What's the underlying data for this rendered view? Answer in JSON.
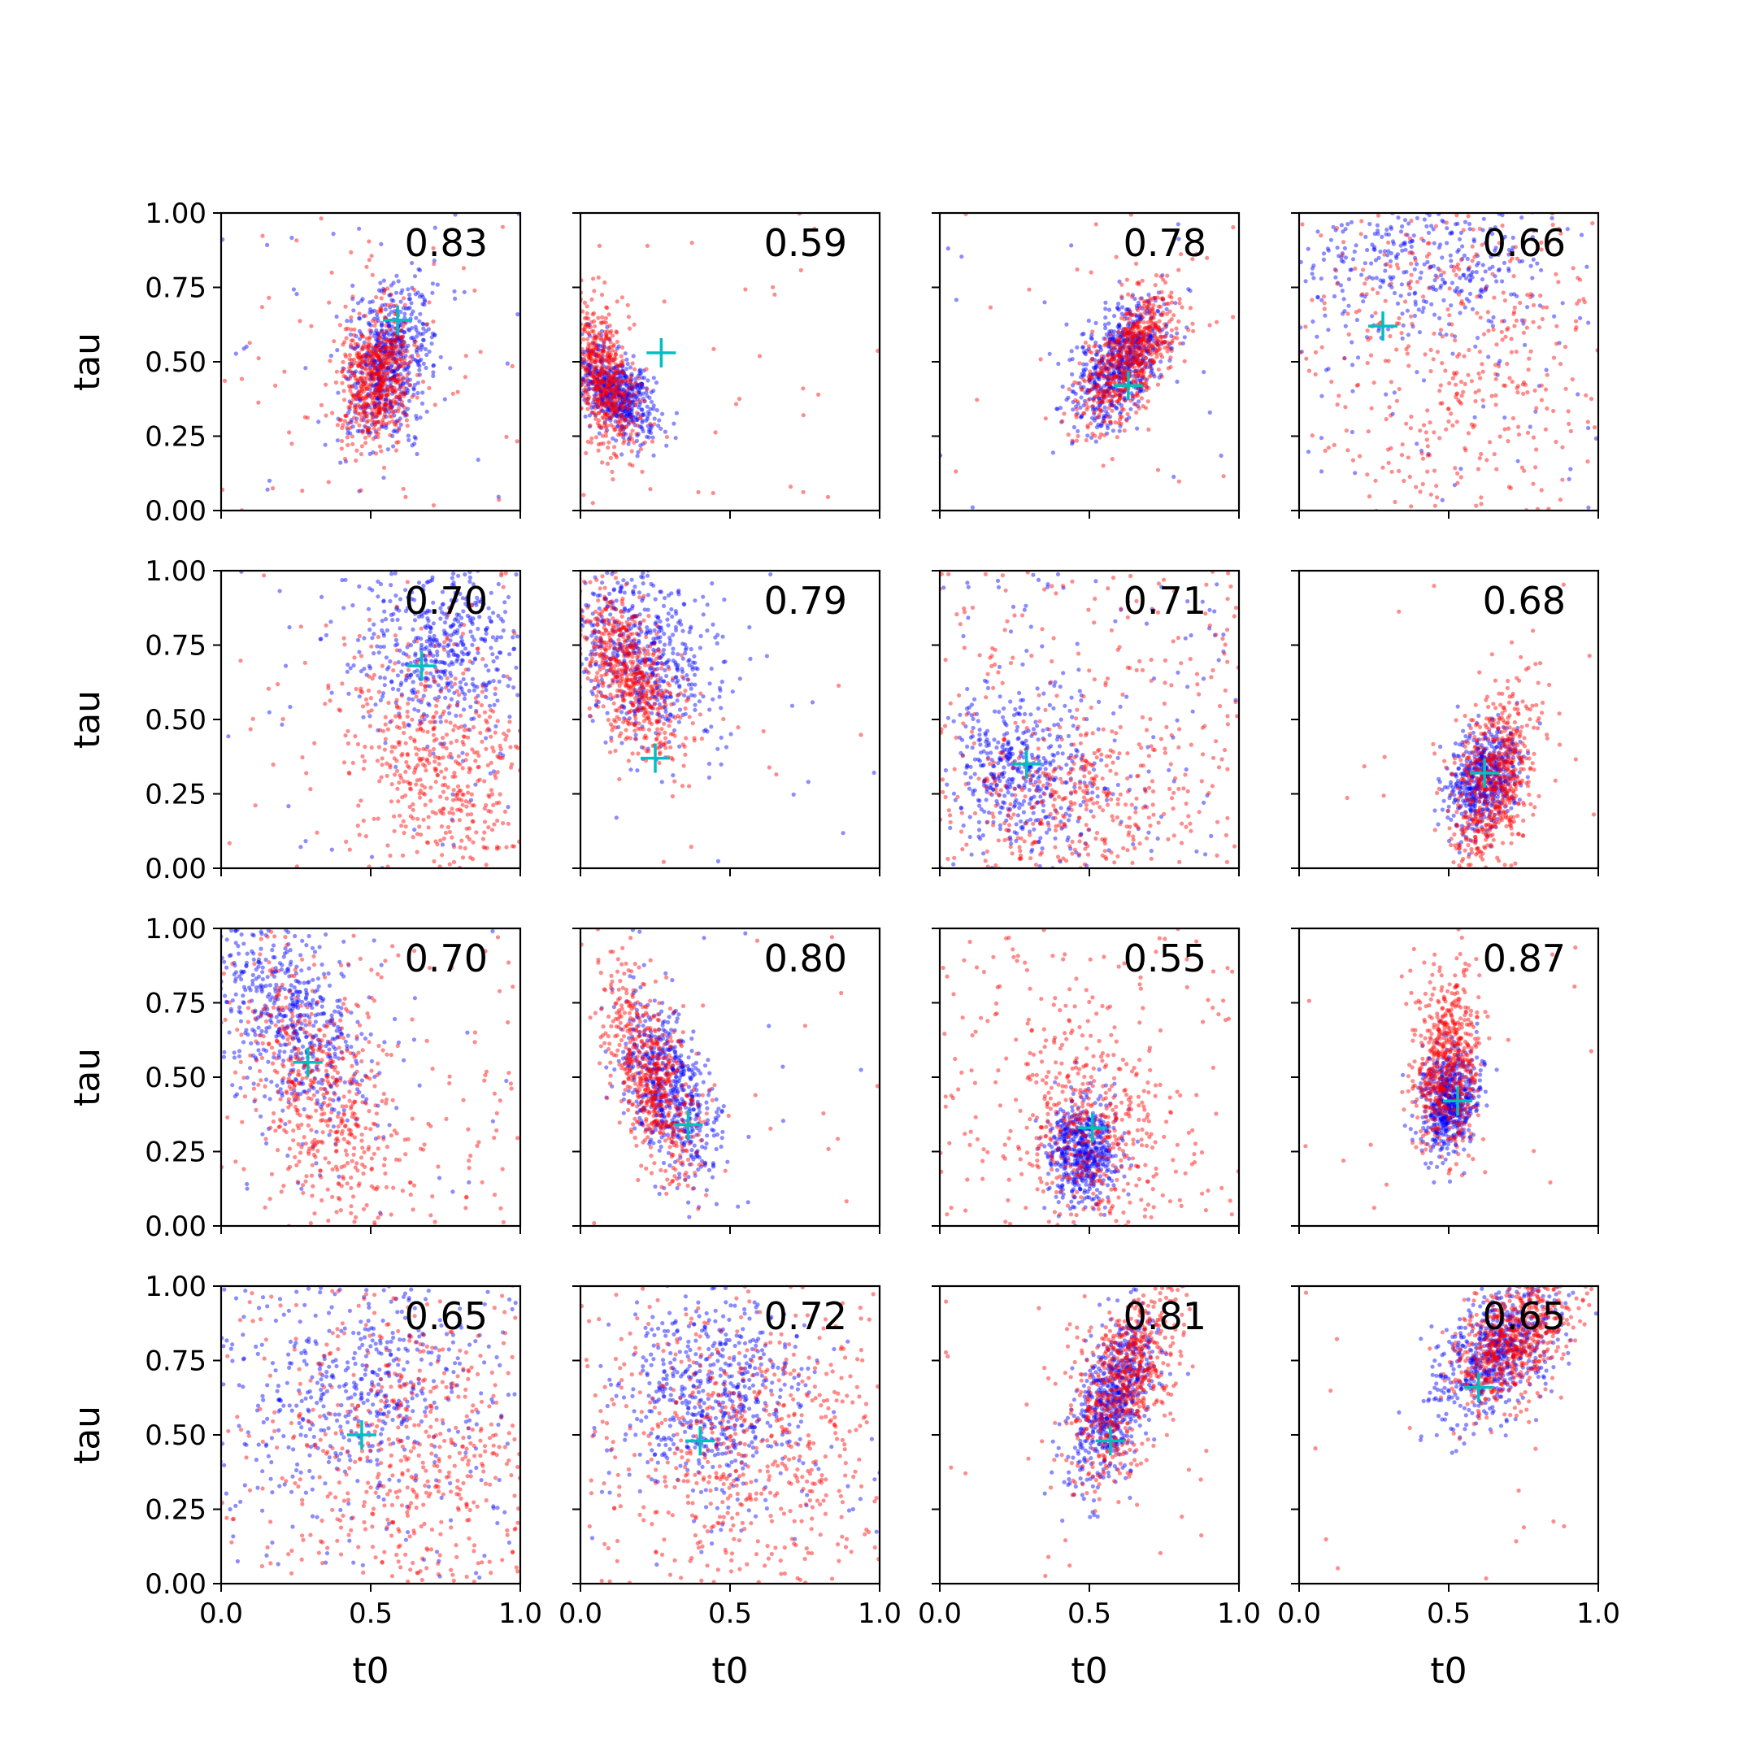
{
  "figure": {
    "xlabel": "t0",
    "ylabel": "tau"
  },
  "colors": {
    "series_a": "#0000ff",
    "series_b": "#ff0000",
    "marker": "#00bfbf",
    "axes": "#000000"
  },
  "axes_config": {
    "xlim": [
      0,
      1
    ],
    "ylim": [
      0,
      1
    ],
    "xticks": [
      "0.0",
      "0.5",
      "1.0"
    ],
    "yticks": [
      "0.00",
      "0.25",
      "0.50",
      "0.75",
      "1.00"
    ],
    "grid": false,
    "sharex": true,
    "sharey": true
  },
  "chart_data": [
    {
      "type": "scatter",
      "row": 0,
      "col": 0,
      "score": "0.83",
      "marker": [
        0.59,
        0.64
      ],
      "series": [
        {
          "color": "blue",
          "cx": 0.56,
          "cy": 0.5,
          "sx": 0.07,
          "sy": 0.13,
          "corr": 0.3,
          "n": 650,
          "uniform": 0.05
        },
        {
          "color": "red",
          "cx": 0.52,
          "cy": 0.45,
          "sx": 0.06,
          "sy": 0.11,
          "corr": 0.2,
          "n": 650,
          "uniform": 0.08
        }
      ]
    },
    {
      "type": "scatter",
      "row": 0,
      "col": 1,
      "score": "0.59",
      "marker": [
        0.27,
        0.53
      ],
      "series": [
        {
          "color": "blue",
          "cx": 0.12,
          "cy": 0.4,
          "sx": 0.07,
          "sy": 0.08,
          "corr": -0.5,
          "n": 600,
          "uniform": 0.0
        },
        {
          "color": "red",
          "cx": 0.08,
          "cy": 0.45,
          "sx": 0.06,
          "sy": 0.13,
          "corr": -0.5,
          "n": 600,
          "uniform": 0.05
        }
      ]
    },
    {
      "type": "scatter",
      "row": 0,
      "col": 2,
      "score": "0.78",
      "marker": [
        0.63,
        0.42
      ],
      "series": [
        {
          "color": "blue",
          "cx": 0.6,
          "cy": 0.5,
          "sx": 0.08,
          "sy": 0.11,
          "corr": 0.5,
          "n": 650,
          "uniform": 0.02
        },
        {
          "color": "red",
          "cx": 0.64,
          "cy": 0.52,
          "sx": 0.08,
          "sy": 0.12,
          "corr": 0.6,
          "n": 650,
          "uniform": 0.03
        }
      ]
    },
    {
      "type": "scatter",
      "row": 0,
      "col": 3,
      "score": "0.66",
      "marker": [
        0.28,
        0.62
      ],
      "series": [
        {
          "color": "blue",
          "cx": 0.4,
          "cy": 0.85,
          "sx": 0.25,
          "sy": 0.14,
          "corr": 0.0,
          "n": 450,
          "uniform": 0.15
        },
        {
          "color": "red",
          "cx": 0.55,
          "cy": 0.55,
          "sx": 0.25,
          "sy": 0.28,
          "corr": 0.0,
          "n": 450,
          "uniform": 0.3
        }
      ]
    },
    {
      "type": "scatter",
      "row": 1,
      "col": 0,
      "score": "0.70",
      "marker": [
        0.67,
        0.68
      ],
      "series": [
        {
          "color": "blue",
          "cx": 0.72,
          "cy": 0.75,
          "sx": 0.15,
          "sy": 0.16,
          "corr": 0.0,
          "n": 550,
          "uniform": 0.05
        },
        {
          "color": "red",
          "cx": 0.72,
          "cy": 0.35,
          "sx": 0.14,
          "sy": 0.22,
          "corr": -0.2,
          "n": 550,
          "uniform": 0.1
        }
      ]
    },
    {
      "type": "scatter",
      "row": 1,
      "col": 1,
      "score": "0.79",
      "marker": [
        0.25,
        0.37
      ],
      "series": [
        {
          "color": "blue",
          "cx": 0.2,
          "cy": 0.72,
          "sx": 0.12,
          "sy": 0.15,
          "corr": -0.3,
          "n": 600,
          "uniform": 0.02
        },
        {
          "color": "red",
          "cx": 0.16,
          "cy": 0.65,
          "sx": 0.09,
          "sy": 0.14,
          "corr": -0.6,
          "n": 600,
          "uniform": 0.03
        }
      ]
    },
    {
      "type": "scatter",
      "row": 1,
      "col": 2,
      "score": "0.71",
      "marker": [
        0.29,
        0.35
      ],
      "series": [
        {
          "color": "blue",
          "cx": 0.27,
          "cy": 0.32,
          "sx": 0.11,
          "sy": 0.14,
          "corr": 0.0,
          "n": 550,
          "uniform": 0.25
        },
        {
          "color": "red",
          "cx": 0.45,
          "cy": 0.2,
          "sx": 0.18,
          "sy": 0.15,
          "corr": 0.0,
          "n": 550,
          "uniform": 0.45
        }
      ]
    },
    {
      "type": "scatter",
      "row": 1,
      "col": 3,
      "score": "0.68",
      "marker": [
        0.62,
        0.32
      ],
      "series": [
        {
          "color": "blue",
          "cx": 0.62,
          "cy": 0.3,
          "sx": 0.06,
          "sy": 0.09,
          "corr": 0.3,
          "n": 550,
          "uniform": 0.0
        },
        {
          "color": "red",
          "cx": 0.65,
          "cy": 0.28,
          "sx": 0.07,
          "sy": 0.16,
          "corr": 0.4,
          "n": 650,
          "uniform": 0.04
        }
      ]
    },
    {
      "type": "scatter",
      "row": 2,
      "col": 0,
      "score": "0.70",
      "marker": [
        0.29,
        0.55
      ],
      "series": [
        {
          "color": "blue",
          "cx": 0.22,
          "cy": 0.7,
          "sx": 0.14,
          "sy": 0.18,
          "corr": -0.4,
          "n": 600,
          "uniform": 0.05
        },
        {
          "color": "red",
          "cx": 0.35,
          "cy": 0.45,
          "sx": 0.13,
          "sy": 0.22,
          "corr": -0.5,
          "n": 600,
          "uniform": 0.2
        }
      ]
    },
    {
      "type": "scatter",
      "row": 2,
      "col": 1,
      "score": "0.80",
      "marker": [
        0.36,
        0.34
      ],
      "series": [
        {
          "color": "blue",
          "cx": 0.3,
          "cy": 0.45,
          "sx": 0.08,
          "sy": 0.15,
          "corr": -0.5,
          "n": 600,
          "uniform": 0.02
        },
        {
          "color": "red",
          "cx": 0.24,
          "cy": 0.5,
          "sx": 0.08,
          "sy": 0.17,
          "corr": -0.6,
          "n": 600,
          "uniform": 0.03
        }
      ]
    },
    {
      "type": "scatter",
      "row": 2,
      "col": 2,
      "score": "0.55",
      "marker": [
        0.51,
        0.33
      ],
      "series": [
        {
          "color": "blue",
          "cx": 0.48,
          "cy": 0.25,
          "sx": 0.06,
          "sy": 0.09,
          "corr": 0.0,
          "n": 550,
          "uniform": 0.0
        },
        {
          "color": "red",
          "cx": 0.5,
          "cy": 0.3,
          "sx": 0.12,
          "sy": 0.18,
          "corr": 0.0,
          "n": 600,
          "uniform": 0.35
        }
      ]
    },
    {
      "type": "scatter",
      "row": 2,
      "col": 3,
      "score": "0.87",
      "marker": [
        0.53,
        0.42
      ],
      "series": [
        {
          "color": "blue",
          "cx": 0.5,
          "cy": 0.42,
          "sx": 0.05,
          "sy": 0.09,
          "corr": 0.2,
          "n": 600,
          "uniform": 0.0
        },
        {
          "color": "red",
          "cx": 0.5,
          "cy": 0.55,
          "sx": 0.06,
          "sy": 0.15,
          "corr": 0.1,
          "n": 600,
          "uniform": 0.03
        }
      ]
    },
    {
      "type": "scatter",
      "row": 3,
      "col": 0,
      "score": "0.65",
      "marker": [
        0.47,
        0.5
      ],
      "series": [
        {
          "color": "blue",
          "cx": 0.45,
          "cy": 0.68,
          "sx": 0.22,
          "sy": 0.18,
          "corr": 0.0,
          "n": 550,
          "uniform": 0.2
        },
        {
          "color": "red",
          "cx": 0.65,
          "cy": 0.45,
          "sx": 0.2,
          "sy": 0.25,
          "corr": 0.0,
          "n": 550,
          "uniform": 0.25
        }
      ]
    },
    {
      "type": "scatter",
      "row": 3,
      "col": 1,
      "score": "0.72",
      "marker": [
        0.4,
        0.48
      ],
      "series": [
        {
          "color": "blue",
          "cx": 0.45,
          "cy": 0.62,
          "sx": 0.15,
          "sy": 0.16,
          "corr": 0.0,
          "n": 600,
          "uniform": 0.08
        },
        {
          "color": "red",
          "cx": 0.55,
          "cy": 0.45,
          "sx": 0.22,
          "sy": 0.24,
          "corr": 0.0,
          "n": 600,
          "uniform": 0.25
        }
      ]
    },
    {
      "type": "scatter",
      "row": 3,
      "col": 2,
      "score": "0.81",
      "marker": [
        0.57,
        0.48
      ],
      "series": [
        {
          "color": "blue",
          "cx": 0.58,
          "cy": 0.62,
          "sx": 0.07,
          "sy": 0.14,
          "corr": 0.5,
          "n": 650,
          "uniform": 0.0
        },
        {
          "color": "red",
          "cx": 0.62,
          "cy": 0.68,
          "sx": 0.09,
          "sy": 0.16,
          "corr": 0.5,
          "n": 650,
          "uniform": 0.04
        }
      ]
    },
    {
      "type": "scatter",
      "row": 3,
      "col": 3,
      "score": "0.65",
      "marker": [
        0.6,
        0.66
      ],
      "series": [
        {
          "color": "blue",
          "cx": 0.66,
          "cy": 0.78,
          "sx": 0.1,
          "sy": 0.12,
          "corr": 0.5,
          "n": 650,
          "uniform": 0.0
        },
        {
          "color": "red",
          "cx": 0.72,
          "cy": 0.82,
          "sx": 0.1,
          "sy": 0.11,
          "corr": 0.5,
          "n": 650,
          "uniform": 0.02
        }
      ]
    }
  ]
}
